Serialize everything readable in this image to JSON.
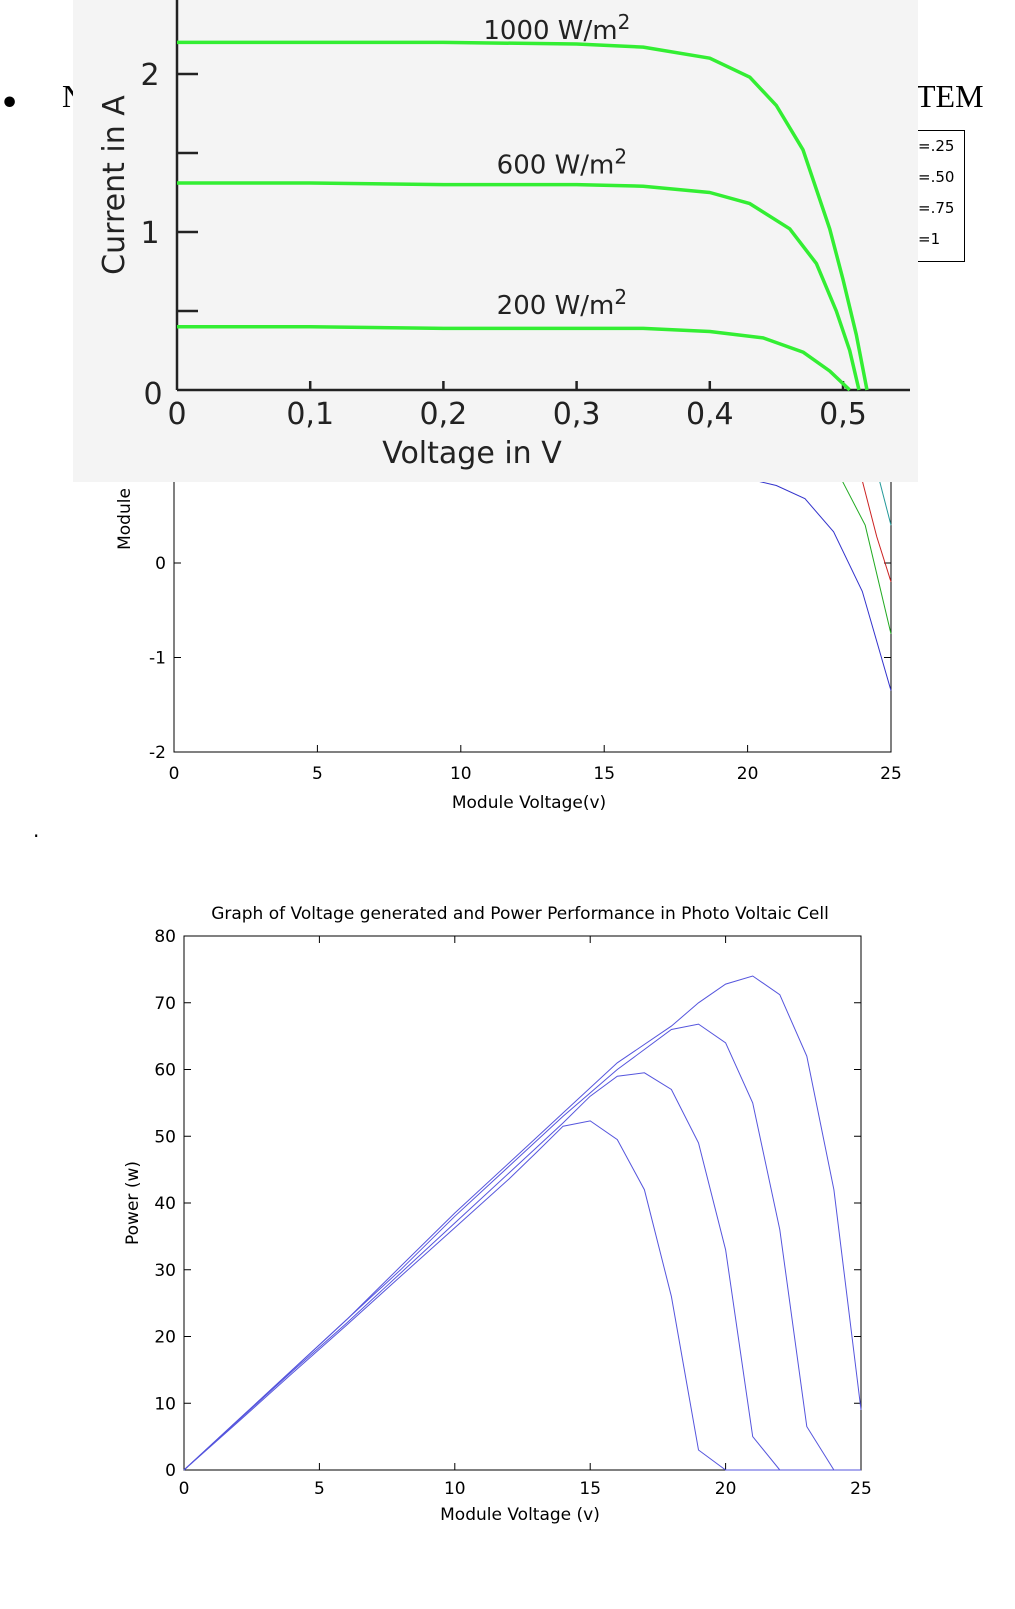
{
  "page": {
    "bullet": "•",
    "heading_left": "N",
    "heading_right": "TEM",
    "legend_items": [
      "=.25",
      "=.50",
      "=.75",
      "=1"
    ],
    "dot": "."
  },
  "chart_data": [
    {
      "type": "line",
      "title": "",
      "xlabel": "Voltage in V",
      "ylabel": "Current in A",
      "xlim": [
        0,
        0.55
      ],
      "ylim": [
        0,
        2.4
      ],
      "x_ticks": [
        0,
        0.1,
        0.2,
        0.3,
        0.4,
        0.5
      ],
      "x_tick_labels": [
        "0",
        "0,1",
        "0,2",
        "0,3",
        "0,4",
        "0,5"
      ],
      "y_ticks": [
        0,
        1,
        2
      ],
      "y_tick_labels": [
        "0",
        "1",
        "2"
      ],
      "color": "#33ee33",
      "series": [
        {
          "name": "1000 W/m²",
          "label_main": "1000 W/m",
          "label_sup": "2",
          "label_pos": [
            0.23,
            2.22
          ],
          "x": [
            0,
            0.1,
            0.2,
            0.3,
            0.35,
            0.4,
            0.43,
            0.45,
            0.47,
            0.49,
            0.5,
            0.51,
            0.518
          ],
          "y": [
            2.2,
            2.2,
            2.2,
            2.19,
            2.17,
            2.1,
            1.98,
            1.8,
            1.52,
            1.02,
            0.7,
            0.35,
            0
          ]
        },
        {
          "name": "600 W/m²",
          "label_main": "600 W/m",
          "label_sup": "2",
          "label_pos": [
            0.24,
            1.37
          ],
          "x": [
            0,
            0.1,
            0.2,
            0.3,
            0.35,
            0.4,
            0.43,
            0.46,
            0.48,
            0.495,
            0.505,
            0.512
          ],
          "y": [
            1.31,
            1.31,
            1.3,
            1.3,
            1.29,
            1.25,
            1.18,
            1.02,
            0.8,
            0.5,
            0.25,
            0
          ]
        },
        {
          "name": "200 W/m²",
          "label_main": "200 W/m",
          "label_sup": "2",
          "label_pos": [
            0.24,
            0.48
          ],
          "x": [
            0,
            0.1,
            0.2,
            0.3,
            0.35,
            0.4,
            0.44,
            0.47,
            0.49,
            0.505
          ],
          "y": [
            0.4,
            0.4,
            0.39,
            0.39,
            0.39,
            0.37,
            0.33,
            0.24,
            0.12,
            0
          ]
        }
      ]
    },
    {
      "type": "line",
      "title": "",
      "xlabel": "Module Voltage(v)",
      "ylabel": "Module",
      "xlim": [
        0,
        25
      ],
      "ylim": [
        -2,
        5
      ],
      "x_ticks": [
        0,
        5,
        10,
        15,
        20,
        25
      ],
      "y_ticks": [
        -2,
        -1,
        0
      ],
      "series": [
        {
          "name": "blue",
          "color": "#3333cc",
          "x": [
            20.3,
            21,
            22,
            23,
            24,
            25
          ],
          "y": [
            0.87,
            0.82,
            0.68,
            0.33,
            -0.3,
            -1.35
          ]
        },
        {
          "name": "green",
          "color": "#22aa22",
          "x": [
            23.3,
            24.1,
            25
          ],
          "y": [
            0.87,
            0.4,
            -0.75
          ]
        },
        {
          "name": "red",
          "color": "#cc2222",
          "x": [
            24.0,
            24.5,
            25
          ],
          "y": [
            0.87,
            0.28,
            -0.2
          ]
        },
        {
          "name": "cyan",
          "color": "#229999",
          "x": [
            24.6,
            25
          ],
          "y": [
            0.87,
            0.4
          ]
        }
      ]
    },
    {
      "type": "line",
      "title": "Graph of Voltage generated and Power Performance in Photo Voltaic Cell",
      "xlabel": "Module Voltage (v)",
      "ylabel": "Power (w)",
      "xlim": [
        0,
        25
      ],
      "ylim": [
        0,
        80
      ],
      "x_ticks": [
        0,
        5,
        10,
        15,
        20,
        25
      ],
      "y_ticks": [
        0,
        10,
        20,
        30,
        40,
        50,
        60,
        70,
        80
      ],
      "color": "#5555dd",
      "series": [
        {
          "name": "Iph=1",
          "x": [
            0,
            2,
            4,
            6,
            8,
            10,
            12,
            14,
            16,
            18,
            19,
            20,
            21,
            22,
            23,
            24,
            25
          ],
          "y": [
            0,
            7.5,
            15,
            22.5,
            30.5,
            38.5,
            46,
            53.5,
            61,
            66.5,
            70,
            72.8,
            74,
            71.2,
            62,
            42,
            9
          ]
        },
        {
          "name": "Iph=.75",
          "x": [
            0,
            2,
            4,
            6,
            8,
            10,
            12,
            14,
            16,
            17,
            18,
            19,
            20,
            21,
            22,
            23,
            24,
            25
          ],
          "y": [
            0,
            7.5,
            15,
            22.5,
            30,
            38,
            45.5,
            53,
            60,
            63,
            66,
            66.8,
            64,
            55,
            36,
            6.5,
            0,
            0
          ]
        },
        {
          "name": "Iph=.50",
          "x": [
            0,
            2,
            4,
            6,
            8,
            10,
            12,
            14,
            15,
            16,
            17,
            18,
            19,
            20,
            21,
            22,
            25
          ],
          "y": [
            0,
            7.4,
            14.8,
            22,
            29.5,
            37,
            44.5,
            52,
            56,
            59,
            59.5,
            57,
            49,
            33,
            5,
            0,
            0
          ]
        },
        {
          "name": "Iph=.25",
          "x": [
            0,
            2,
            4,
            6,
            8,
            10,
            12,
            13,
            14,
            15,
            16,
            17,
            18,
            19,
            20,
            25
          ],
          "y": [
            0,
            7.2,
            14.5,
            21.7,
            29,
            36.3,
            43.6,
            47.5,
            51.5,
            52.3,
            49.5,
            42,
            26,
            3,
            0,
            0
          ]
        }
      ]
    }
  ]
}
